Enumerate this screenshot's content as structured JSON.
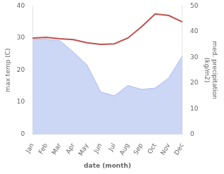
{
  "chart_data": {
    "type": "line",
    "xlabel": "date (month)",
    "ylabel": "max temp (C)",
    "y2label": "med. precipitation\n(kg/m2)",
    "categories": [
      "Jan",
      "Feb",
      "Mar",
      "Apr",
      "May",
      "Jun",
      "Jul",
      "Aug",
      "Sep",
      "Oct",
      "Nov",
      "Dec"
    ],
    "series": [
      {
        "type": "area",
        "axis": "y2",
        "color": "#aabbee",
        "values": [
          37.0,
          37.0,
          36.5,
          32.0,
          27.0,
          16.5,
          15.0,
          19.0,
          17.5,
          18.0,
          22.0,
          30.5
        ]
      },
      {
        "type": "line",
        "color": "#c0504d",
        "values": [
          30.0,
          30.2,
          29.8,
          29.5,
          28.5,
          28.0,
          28.2,
          30.0,
          33.5,
          37.5,
          37.0,
          35.0
        ]
      }
    ],
    "ylim": [
      0,
      40
    ],
    "yticks": [
      0,
      10,
      20,
      30,
      40
    ],
    "y2lim": [
      0,
      50
    ],
    "y2ticks": [
      0,
      10,
      20,
      30,
      40,
      50
    ],
    "grid": false
  }
}
